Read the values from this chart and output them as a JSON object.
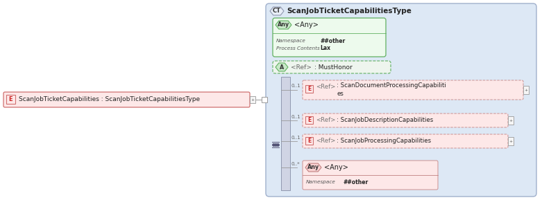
{
  "bg_color": "#ffffff",
  "main_bg": "#dde8f5",
  "main_border": "#a0b0cc",
  "green_fill": "#edfaed",
  "green_border": "#60b060",
  "pink_fill": "#fde8e8",
  "pink_border": "#d07070",
  "dashed_fill": "#f5f5fa",
  "seq_fill": "#d0d4e4",
  "seq_border": "#9098b0",
  "ct_tag_fill": "#e8eef8",
  "ct_tag_border": "#9098b0",
  "left_element_label": "ScanJobTicketCapabilities : ScanJobTicketCapabilitiesType",
  "ct_label": "ScanJobTicketCapabilitiesType",
  "any1_ns": "##other",
  "any1_pc": "Lax",
  "attr_value": ": MustHonor",
  "elem1_value_line1": ": ScanDocumentProcessingCapabiliti",
  "elem1_value_line2": "es",
  "elem1_range": "0..1",
  "elem2_value": ": ScanJobDescriptionCapabilities",
  "elem2_range": "0..1",
  "elem3_value": ": ScanJobProcessingCapabilities",
  "elem3_range": "0..1",
  "any2_ns": "##other",
  "any2_range": "0..*"
}
